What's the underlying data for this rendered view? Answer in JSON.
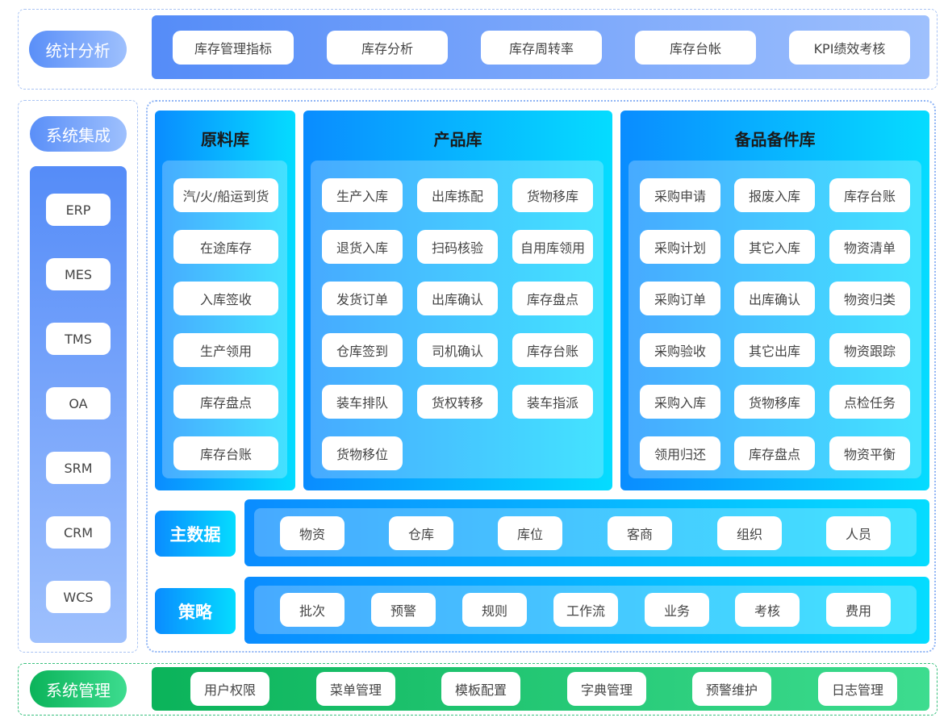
{
  "stats": {
    "label": "统计分析",
    "items": [
      "库存管理指标",
      "库存分析",
      "库存周转率",
      "库存台帐",
      "KPI绩效考核"
    ]
  },
  "integration": {
    "label": "系统集成",
    "items": [
      "ERP",
      "MES",
      "TMS",
      "OA",
      "SRM",
      "CRM",
      "WCS"
    ]
  },
  "raw": {
    "title": "原料库",
    "items": [
      "汽/火/船运到货",
      "在途库存",
      "入库签收",
      "生产领用",
      "库存盘点",
      "库存台账"
    ]
  },
  "product": {
    "title": "产品库",
    "items": [
      "生产入库",
      "出库拣配",
      "货物移库",
      "退货入库",
      "扫码核验",
      "自用库领用",
      "发货订单",
      "出库确认",
      "库存盘点",
      "仓库签到",
      "司机确认",
      "库存台账",
      "装车排队",
      "货权转移",
      "装车指派",
      "货物移位"
    ]
  },
  "spare": {
    "title": "备品备件库",
    "items": [
      "采购申请",
      "报废入库",
      "库存台账",
      "采购计划",
      "其它入库",
      "物资清单",
      "采购订单",
      "出库确认",
      "物资归类",
      "采购验收",
      "其它出库",
      "物资跟踪",
      "采购入库",
      "货物移库",
      "点检任务",
      "领用归还",
      "库存盘点",
      "物资平衡"
    ]
  },
  "master": {
    "label": "主数据",
    "items": [
      "物资",
      "仓库",
      "库位",
      "客商",
      "组织",
      "人员"
    ]
  },
  "strategy": {
    "label": "策略",
    "items": [
      "批次",
      "预警",
      "规则",
      "工作流",
      "业务",
      "考核",
      "费用"
    ]
  },
  "admin": {
    "label": "系统管理",
    "items": [
      "用户权限",
      "菜单管理",
      "模板配置",
      "字典管理",
      "预警维护",
      "日志管理"
    ]
  },
  "colors": {
    "stats_bar": "#5b8ff9",
    "panel_start": "#0a8cff",
    "panel_end": "#05dcff",
    "admin_start": "#0bb35a",
    "admin_end": "#3ddc8f"
  }
}
